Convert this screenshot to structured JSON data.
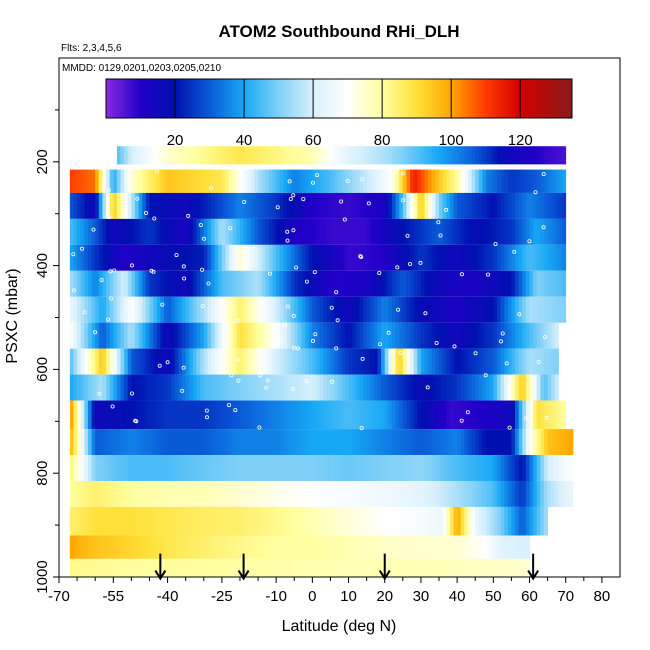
{
  "chart_data": {
    "type": "heatmap",
    "title": "ATOM2 Southbound RHi_DLH",
    "subtitle": "Flts: 2,3,4,5,6",
    "note": "MMDD: 0129,0201,0203,0205,0210",
    "xlabel": "Latitude (deg N)",
    "ylabel": "PSXC (mbar)",
    "xlim": [
      -70,
      85
    ],
    "ylim": [
      1000,
      0
    ],
    "xticks": [
      -70,
      -55,
      -40,
      -25,
      -10,
      0,
      10,
      20,
      30,
      40,
      50,
      60,
      70,
      80
    ],
    "yticks": [
      200,
      400,
      600,
      800,
      1000
    ],
    "colorbar": {
      "range": [
        0,
        135
      ],
      "ticks": [
        20,
        40,
        60,
        80,
        100,
        120
      ],
      "stops": [
        {
          "v": 0,
          "color": "#8a2be2"
        },
        {
          "v": 10,
          "color": "#2200c8"
        },
        {
          "v": 20,
          "color": "#0010b0"
        },
        {
          "v": 30,
          "color": "#0a5ad8"
        },
        {
          "v": 40,
          "color": "#17a8f5"
        },
        {
          "v": 50,
          "color": "#7fd0f8"
        },
        {
          "v": 60,
          "color": "#d8f0fc"
        },
        {
          "v": 70,
          "color": "#ffffff"
        },
        {
          "v": 80,
          "color": "#ffffa0"
        },
        {
          "v": 90,
          "color": "#ffe13a"
        },
        {
          "v": 100,
          "color": "#ffa600"
        },
        {
          "v": 110,
          "color": "#ff3a00"
        },
        {
          "v": 120,
          "color": "#d40000"
        },
        {
          "v": 135,
          "color": "#8b1a1a"
        }
      ]
    },
    "arrows_latitude": [
      -42,
      -19,
      20,
      61
    ],
    "rows": [
      {
        "p_top": 170,
        "p_bot": 205,
        "x0": -54,
        "x1": 70,
        "profile": [
          [
            -54,
            45
          ],
          [
            -50,
            60
          ],
          [
            -40,
            75
          ],
          [
            -20,
            88
          ],
          [
            0,
            78
          ],
          [
            10,
            62
          ],
          [
            20,
            55
          ],
          [
            35,
            40
          ],
          [
            45,
            30
          ],
          [
            55,
            15
          ],
          [
            65,
            8
          ],
          [
            70,
            6
          ]
        ]
      },
      {
        "p_top": 215,
        "p_bot": 260,
        "x0": -67,
        "x1": 70,
        "profile": [
          [
            -67,
            110
          ],
          [
            -60,
            105
          ],
          [
            -55,
            40
          ],
          [
            -50,
            75
          ],
          [
            -40,
            95
          ],
          [
            -25,
            88
          ],
          [
            -15,
            55
          ],
          [
            -5,
            35
          ],
          [
            5,
            45
          ],
          [
            15,
            58
          ],
          [
            22,
            70
          ],
          [
            28,
            115
          ],
          [
            33,
            100
          ],
          [
            40,
            80
          ],
          [
            48,
            35
          ],
          [
            55,
            25
          ],
          [
            62,
            30
          ],
          [
            70,
            40
          ]
        ]
      },
      {
        "p_top": 260,
        "p_bot": 310,
        "x0": -67,
        "x1": 70,
        "profile": [
          [
            -67,
            30
          ],
          [
            -60,
            15
          ],
          [
            -55,
            95
          ],
          [
            -45,
            20
          ],
          [
            -35,
            15
          ],
          [
            -20,
            35
          ],
          [
            -10,
            25
          ],
          [
            0,
            10
          ],
          [
            10,
            8
          ],
          [
            20,
            12
          ],
          [
            25,
            45
          ],
          [
            30,
            95
          ],
          [
            35,
            50
          ],
          [
            40,
            30
          ],
          [
            50,
            20
          ],
          [
            60,
            35
          ],
          [
            70,
            25
          ]
        ]
      },
      {
        "p_top": 310,
        "p_bot": 360,
        "x0": -67,
        "x1": 70,
        "profile": [
          [
            -67,
            45
          ],
          [
            -60,
            30
          ],
          [
            -55,
            15
          ],
          [
            -45,
            25
          ],
          [
            -35,
            12
          ],
          [
            -25,
            55
          ],
          [
            -15,
            30
          ],
          [
            -5,
            12
          ],
          [
            5,
            8
          ],
          [
            15,
            8
          ],
          [
            25,
            20
          ],
          [
            35,
            30
          ],
          [
            45,
            18
          ],
          [
            55,
            25
          ],
          [
            62,
            40
          ],
          [
            70,
            30
          ]
        ]
      },
      {
        "p_top": 360,
        "p_bot": 410,
        "x0": -67,
        "x1": 70,
        "profile": [
          [
            -67,
            40
          ],
          [
            -60,
            25
          ],
          [
            -52,
            10
          ],
          [
            -40,
            18
          ],
          [
            -30,
            22
          ],
          [
            -20,
            75
          ],
          [
            -10,
            45
          ],
          [
            0,
            20
          ],
          [
            10,
            8
          ],
          [
            20,
            10
          ],
          [
            30,
            25
          ],
          [
            40,
            15
          ],
          [
            50,
            25
          ],
          [
            60,
            45
          ],
          [
            70,
            35
          ]
        ]
      },
      {
        "p_top": 410,
        "p_bot": 460,
        "x0": -67,
        "x1": 70,
        "profile": [
          [
            -67,
            55
          ],
          [
            -60,
            35
          ],
          [
            -52,
            60
          ],
          [
            -45,
            25
          ],
          [
            -35,
            15
          ],
          [
            -25,
            45
          ],
          [
            -15,
            55
          ],
          [
            -5,
            25
          ],
          [
            5,
            10
          ],
          [
            15,
            12
          ],
          [
            25,
            30
          ],
          [
            35,
            15
          ],
          [
            45,
            12
          ],
          [
            55,
            20
          ],
          [
            62,
            50
          ],
          [
            70,
            45
          ]
        ]
      },
      {
        "p_top": 460,
        "p_bot": 510,
        "x0": -67,
        "x1": 70,
        "profile": [
          [
            -67,
            65
          ],
          [
            -58,
            40
          ],
          [
            -50,
            70
          ],
          [
            -40,
            30
          ],
          [
            -30,
            55
          ],
          [
            -20,
            85
          ],
          [
            -10,
            60
          ],
          [
            0,
            30
          ],
          [
            10,
            15
          ],
          [
            20,
            35
          ],
          [
            30,
            18
          ],
          [
            40,
            12
          ],
          [
            50,
            20
          ],
          [
            60,
            55
          ],
          [
            70,
            50
          ]
        ]
      },
      {
        "p_top": 510,
        "p_bot": 560,
        "x0": -67,
        "x1": 68,
        "profile": [
          [
            -67,
            70
          ],
          [
            -58,
            30
          ],
          [
            -50,
            55
          ],
          [
            -40,
            15
          ],
          [
            -30,
            40
          ],
          [
            -20,
            90
          ],
          [
            -10,
            70
          ],
          [
            0,
            35
          ],
          [
            10,
            20
          ],
          [
            20,
            40
          ],
          [
            30,
            25
          ],
          [
            40,
            15
          ],
          [
            50,
            25
          ],
          [
            60,
            45
          ],
          [
            68,
            60
          ]
        ]
      },
      {
        "p_top": 560,
        "p_bot": 610,
        "x0": -67,
        "x1": 68,
        "profile": [
          [
            -67,
            45
          ],
          [
            -58,
            95
          ],
          [
            -50,
            30
          ],
          [
            -40,
            15
          ],
          [
            -30,
            55
          ],
          [
            -20,
            85
          ],
          [
            -10,
            60
          ],
          [
            0,
            45
          ],
          [
            10,
            25
          ],
          [
            18,
            20
          ],
          [
            24,
            95
          ],
          [
            30,
            40
          ],
          [
            40,
            20
          ],
          [
            50,
            30
          ],
          [
            60,
            55
          ],
          [
            68,
            50
          ]
        ]
      },
      {
        "p_top": 610,
        "p_bot": 660,
        "x0": -67,
        "x1": 68,
        "profile": [
          [
            -67,
            40
          ],
          [
            -58,
            55
          ],
          [
            -50,
            20
          ],
          [
            -40,
            25
          ],
          [
            -30,
            45
          ],
          [
            -20,
            50
          ],
          [
            -10,
            55
          ],
          [
            0,
            60
          ],
          [
            10,
            45
          ],
          [
            20,
            30
          ],
          [
            30,
            18
          ],
          [
            40,
            25
          ],
          [
            50,
            40
          ],
          [
            58,
            95
          ],
          [
            64,
            45
          ],
          [
            68,
            60
          ]
        ]
      },
      {
        "p_top": 660,
        "p_bot": 715,
        "x0": -67,
        "x1": 70,
        "profile": [
          [
            -67,
            105
          ],
          [
            -60,
            15
          ],
          [
            -50,
            20
          ],
          [
            -40,
            25
          ],
          [
            -30,
            25
          ],
          [
            -20,
            30
          ],
          [
            -10,
            35
          ],
          [
            0,
            40
          ],
          [
            10,
            45
          ],
          [
            20,
            40
          ],
          [
            30,
            20
          ],
          [
            38,
            8
          ],
          [
            45,
            10
          ],
          [
            55,
            15
          ],
          [
            62,
            90
          ],
          [
            70,
            80
          ]
        ]
      },
      {
        "p_top": 715,
        "p_bot": 765,
        "x0": -67,
        "x1": 72,
        "profile": [
          [
            -67,
            100
          ],
          [
            -60,
            30
          ],
          [
            -50,
            35
          ],
          [
            -40,
            30
          ],
          [
            -30,
            30
          ],
          [
            -20,
            35
          ],
          [
            -10,
            35
          ],
          [
            0,
            40
          ],
          [
            10,
            40
          ],
          [
            20,
            35
          ],
          [
            30,
            30
          ],
          [
            40,
            35
          ],
          [
            48,
            20
          ],
          [
            55,
            20
          ],
          [
            60,
            70
          ],
          [
            65,
            95
          ],
          [
            72,
            100
          ]
        ]
      },
      {
        "p_top": 765,
        "p_bot": 815,
        "x0": -67,
        "x1": 72,
        "profile": [
          [
            -67,
            85
          ],
          [
            -60,
            50
          ],
          [
            -50,
            45
          ],
          [
            -40,
            45
          ],
          [
            -30,
            48
          ],
          [
            -20,
            50
          ],
          [
            -10,
            50
          ],
          [
            0,
            50
          ],
          [
            10,
            48
          ],
          [
            20,
            50
          ],
          [
            30,
            52
          ],
          [
            40,
            45
          ],
          [
            50,
            40
          ],
          [
            58,
            20
          ],
          [
            65,
            60
          ],
          [
            72,
            70
          ]
        ]
      },
      {
        "p_top": 815,
        "p_bot": 865,
        "x0": -67,
        "x1": 72,
        "profile": [
          [
            -67,
            80
          ],
          [
            -60,
            85
          ],
          [
            -50,
            80
          ],
          [
            -40,
            78
          ],
          [
            -30,
            78
          ],
          [
            -20,
            75
          ],
          [
            -10,
            72
          ],
          [
            0,
            70
          ],
          [
            10,
            68
          ],
          [
            20,
            66
          ],
          [
            30,
            63
          ],
          [
            40,
            55
          ],
          [
            50,
            45
          ],
          [
            58,
            25
          ],
          [
            65,
            55
          ],
          [
            72,
            65
          ]
        ]
      },
      {
        "p_top": 865,
        "p_bot": 920,
        "x0": -67,
        "x1": 65,
        "profile": [
          [
            -67,
            85
          ],
          [
            -60,
            90
          ],
          [
            -50,
            90
          ],
          [
            -40,
            88
          ],
          [
            -30,
            86
          ],
          [
            -20,
            85
          ],
          [
            -10,
            82
          ],
          [
            0,
            78
          ],
          [
            10,
            74
          ],
          [
            20,
            70
          ],
          [
            30,
            68
          ],
          [
            36,
            65
          ],
          [
            40,
            100
          ],
          [
            45,
            65
          ],
          [
            52,
            50
          ],
          [
            58,
            30
          ],
          [
            65,
            55
          ]
        ]
      },
      {
        "p_top": 920,
        "p_bot": 965,
        "x0": -67,
        "x1": 60,
        "profile": [
          [
            -67,
            100
          ],
          [
            -60,
            95
          ],
          [
            -50,
            92
          ],
          [
            -40,
            88
          ],
          [
            -30,
            85
          ],
          [
            -20,
            82
          ],
          [
            -10,
            80
          ],
          [
            0,
            80
          ],
          [
            10,
            78
          ],
          [
            20,
            76
          ],
          [
            30,
            75
          ],
          [
            40,
            75
          ],
          [
            48,
            70
          ],
          [
            52,
            62
          ],
          [
            60,
            60
          ]
        ]
      },
      {
        "p_top": 965,
        "p_bot": 1000,
        "x0": -67,
        "x1": 60,
        "profile": [
          [
            -67,
            82
          ],
          [
            -50,
            80
          ],
          [
            -30,
            80
          ],
          [
            -10,
            79
          ],
          [
            10,
            78
          ],
          [
            30,
            78
          ],
          [
            50,
            76
          ],
          [
            60,
            75
          ]
        ]
      }
    ]
  }
}
